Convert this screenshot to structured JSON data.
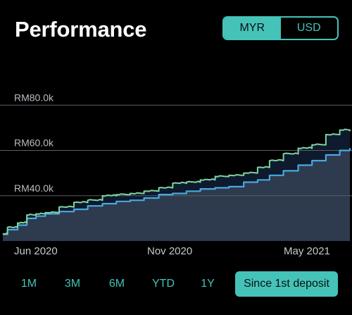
{
  "header": {
    "title": "Performance"
  },
  "currency_toggle": {
    "options": [
      "MYR",
      "USD"
    ],
    "selected": "MYR"
  },
  "range_tabs": {
    "items": [
      "1M",
      "3M",
      "6M",
      "YTD",
      "1Y",
      "Since 1st deposit"
    ],
    "selected": "Since 1st deposit"
  },
  "colors": {
    "accent": "#45c3b8",
    "portfolio_line": "#7fd4a0",
    "deposit_line": "#4aa8e0",
    "deposit_fill": "#2e3a4d",
    "gain_fill": "#0e1a2e",
    "grid": "#5a5e66",
    "background": "#000000"
  },
  "chart_data": {
    "type": "area",
    "y_ticks": [
      "RM80.0k",
      "RM60.0k",
      "RM40.0k"
    ],
    "y_tick_values": [
      80000,
      60000,
      40000
    ],
    "x_ticks": [
      "Jun 2020",
      "Nov 2020",
      "May 2021"
    ],
    "x_tick_dates": [
      "2020-06-01",
      "2020-11-01",
      "2021-05-01"
    ],
    "ylim": [
      20000,
      100000
    ],
    "x_range": [
      "2020-05-20",
      "2021-05-31"
    ],
    "grid": true,
    "series": [
      {
        "key": "deposits",
        "x": [
          "2020-05-20",
          "2020-05-25",
          "2020-06-05",
          "2020-06-15",
          "2020-06-25",
          "2020-07-05",
          "2020-07-20",
          "2020-08-05",
          "2020-08-20",
          "2020-09-05",
          "2020-09-20",
          "2020-10-05",
          "2020-10-20",
          "2020-11-05",
          "2020-11-20",
          "2020-12-05",
          "2020-12-20",
          "2021-01-05",
          "2021-01-20",
          "2021-02-05",
          "2021-02-20",
          "2021-03-05",
          "2021-03-20",
          "2021-04-05",
          "2021-04-20",
          "2021-05-05",
          "2021-05-20",
          "2021-05-31"
        ],
        "values": [
          23000,
          25000,
          27000,
          30000,
          31000,
          32000,
          33000,
          34000,
          35500,
          36500,
          37500,
          38000,
          39000,
          40500,
          41000,
          42000,
          43000,
          43500,
          44000,
          46000,
          47000,
          49000,
          51000,
          53500,
          55500,
          58000,
          60000,
          61000
        ]
      },
      {
        "key": "portfolio",
        "x": [
          "2020-05-20",
          "2020-05-25",
          "2020-06-05",
          "2020-06-15",
          "2020-06-25",
          "2020-07-05",
          "2020-07-20",
          "2020-08-05",
          "2020-08-20",
          "2020-09-05",
          "2020-09-20",
          "2020-10-05",
          "2020-10-20",
          "2020-11-05",
          "2020-11-20",
          "2020-12-05",
          "2020-12-20",
          "2021-01-05",
          "2021-01-20",
          "2021-02-05",
          "2021-02-20",
          "2021-03-05",
          "2021-03-20",
          "2021-04-05",
          "2021-04-20",
          "2021-05-05",
          "2021-05-20",
          "2021-05-31"
        ],
        "values": [
          23000,
          26000,
          28000,
          31500,
          32000,
          32500,
          35000,
          37000,
          38000,
          40000,
          40500,
          41000,
          42000,
          43500,
          45500,
          46000,
          47000,
          48500,
          49000,
          50000,
          52500,
          55500,
          58500,
          61000,
          62500,
          67000,
          69000,
          68500
        ]
      }
    ]
  }
}
